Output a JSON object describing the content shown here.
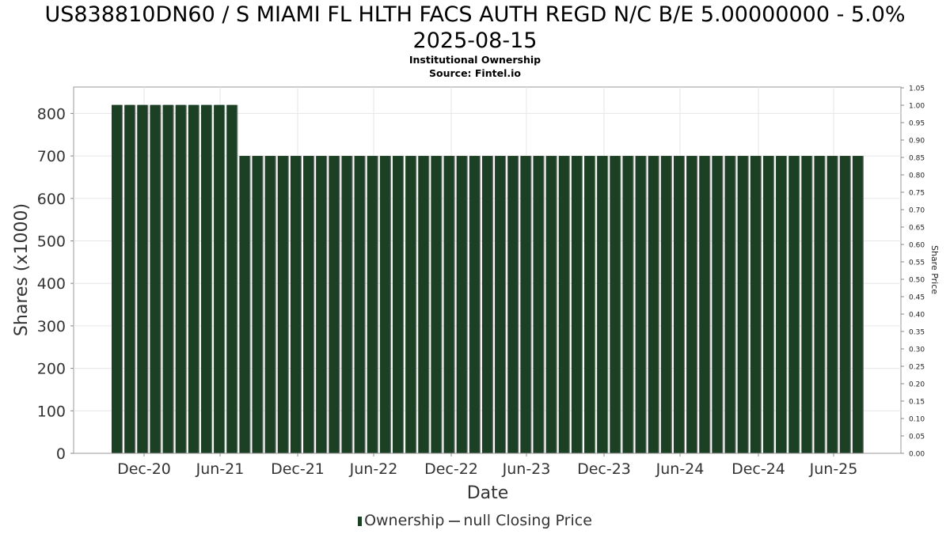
{
  "chart_data": {
    "type": "bar",
    "title_line1": "US838810DN60 / S MIAMI FL HLTH FACS AUTH REGD N/C B/E 5.00000000 - 5.0%",
    "title_line2": "2025-08-15",
    "subtitle_line1": "Institutional Ownership",
    "subtitle_line2": "Source: Fintel.io",
    "xlabel": "Date",
    "ylabel": "Shares (x1000)",
    "y2label": "Share Price",
    "ylim": [
      0,
      850
    ],
    "y2lim": [
      0,
      1.05
    ],
    "y_ticks": [
      "0",
      "100",
      "200",
      "300",
      "400",
      "500",
      "600",
      "700",
      "800"
    ],
    "y2_ticks": [
      "0.00",
      "0.05",
      "0.10",
      "0.15",
      "0.20",
      "0.25",
      "0.30",
      "0.35",
      "0.40",
      "0.45",
      "0.50",
      "0.55",
      "0.60",
      "0.65",
      "0.70",
      "0.75",
      "0.80",
      "0.85",
      "0.90",
      "0.95",
      "1.00",
      "1.05"
    ],
    "x_ticks": [
      "Dec-20",
      "Jun-21",
      "Dec-21",
      "Jun-22",
      "Dec-22",
      "Jun-23",
      "Dec-23",
      "Jun-24",
      "Dec-24",
      "Jun-25"
    ],
    "grid": true,
    "legend_position": "bottom",
    "series": [
      {
        "name": "Ownership",
        "color": "#1b4023",
        "values": [
          820,
          820,
          820,
          820,
          820,
          820,
          820,
          820,
          820,
          820,
          700,
          700,
          700,
          700,
          700,
          700,
          700,
          700,
          700,
          700,
          700,
          700,
          700,
          700,
          700,
          700,
          700,
          700,
          700,
          700,
          700,
          700,
          700,
          700,
          700,
          700,
          700,
          700,
          700,
          700,
          700,
          700,
          700,
          700,
          700,
          700,
          700,
          700,
          700,
          700,
          700,
          700,
          700,
          700,
          700,
          700,
          700,
          700,
          700
        ]
      },
      {
        "name": "null Closing Price",
        "color": "#555555",
        "values": []
      }
    ]
  }
}
